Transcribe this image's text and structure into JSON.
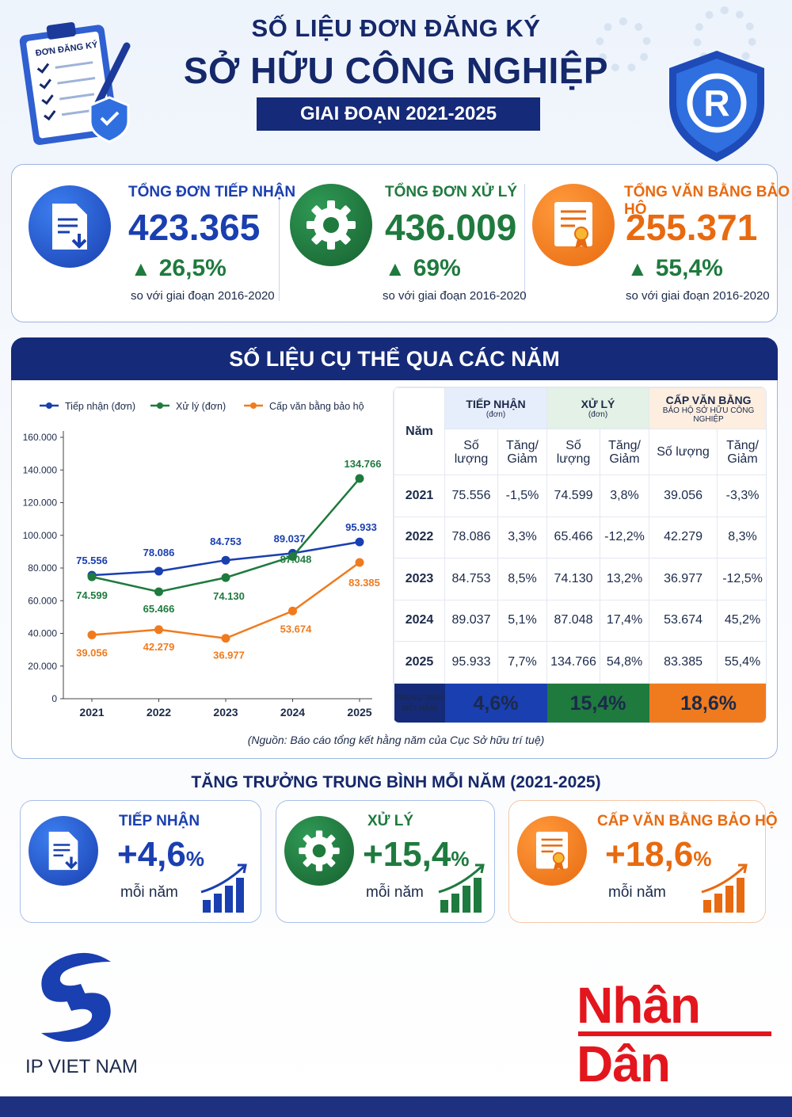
{
  "header": {
    "line1": "SỐ LIỆU ĐƠN ĐĂNG KÝ",
    "line2": "SỞ HỮU CÔNG NGHIỆP",
    "period": "GIAI ĐOẠN 2021-2025",
    "clipboard_label": "ĐƠN ĐĂNG KÝ",
    "shield_letter": "R"
  },
  "summary": [
    {
      "title": "TỔNG ĐƠN TIẾP NHẬN",
      "value": "423.365",
      "pct": "26,5%",
      "note": "so với giai đoạn 2016-2020",
      "color": "#1a3fb0",
      "icon": "document-download-icon"
    },
    {
      "title": "TỔNG ĐƠN XỬ LÝ",
      "value": "436.009",
      "pct": "69%",
      "note": "so với giai đoạn 2016-2020",
      "color": "#1f7a3e",
      "icon": "gear-icon"
    },
    {
      "title": "TỔNG VĂN BẰNG BẢO HỘ",
      "value": "255.371",
      "pct": "55,4%",
      "note": "so với giai đoạn 2016-2020",
      "color": "#e86a10",
      "icon": "certificate-icon"
    }
  ],
  "section_title": "SỐ LIỆU CỤ THỂ QUA CÁC NĂM",
  "chart_data": {
    "type": "line",
    "x": [
      "2021",
      "2022",
      "2023",
      "2024",
      "2025"
    ],
    "ylim": [
      0,
      160000
    ],
    "yticks": [
      0,
      20000,
      40000,
      60000,
      80000,
      100000,
      120000,
      140000,
      160000
    ],
    "ytick_labels": [
      "0",
      "20.000",
      "40.000",
      "60.000",
      "80.000",
      "100.000",
      "120.000",
      "140.000",
      "160.000"
    ],
    "legend_position": "top",
    "grid": false,
    "series": [
      {
        "name": "Tiếp nhận (đơn)",
        "color": "#1a3fb0",
        "values": [
          75556,
          78086,
          84753,
          89037,
          95933
        ],
        "labels": [
          "75.556",
          "78.086",
          "84.753",
          "89.037",
          "95.933"
        ]
      },
      {
        "name": "Xử lý (đơn)",
        "color": "#1f7a3e",
        "values": [
          74599,
          65466,
          74130,
          87048,
          134766
        ],
        "labels": [
          "74.599",
          "65.466",
          "74.130",
          "87.048",
          "134.766"
        ]
      },
      {
        "name": "Cấp văn bằng bảo hộ",
        "color": "#f07b1e",
        "values": [
          39056,
          42279,
          36977,
          53674,
          83385
        ],
        "labels": [
          "39.056",
          "42.279",
          "36.977",
          "53.674",
          "83.385"
        ]
      }
    ]
  },
  "table": {
    "year_header": "Năm",
    "groups": [
      {
        "title": "TIẾP NHẬN",
        "sub": "(đơn)"
      },
      {
        "title": "XỬ LÝ",
        "sub": "(đơn)"
      },
      {
        "title": "CẤP VĂN BẰNG",
        "sub": "BẢO HỘ SỞ HỮU CÔNG NGHIỆP"
      }
    ],
    "col_qty": "Số lượng",
    "col_change": "Tăng/ Giảm",
    "rows": [
      {
        "year": "2021",
        "cells": [
          "75.556",
          "-1,5%",
          "74.599",
          "3,8%",
          "39.056",
          "-3,3%"
        ]
      },
      {
        "year": "2022",
        "cells": [
          "78.086",
          "3,3%",
          "65.466",
          "-12,2%",
          "42.279",
          "8,3%"
        ]
      },
      {
        "year": "2023",
        "cells": [
          "84.753",
          "8,5%",
          "74.130",
          "13,2%",
          "36.977",
          "-12,5%"
        ]
      },
      {
        "year": "2024",
        "cells": [
          "89.037",
          "5,1%",
          "87.048",
          "17,4%",
          "53.674",
          "45,2%"
        ]
      },
      {
        "year": "2025",
        "cells": [
          "95.933",
          "7,7%",
          "134.766",
          "54,8%",
          "83.385",
          "55,4%"
        ]
      }
    ],
    "avg_label_1": "TRUNG BÌNH",
    "avg_label_2": "MỖI NĂM",
    "avg_values": [
      "4,6%",
      "15,4%",
      "18,6%"
    ]
  },
  "source": "(Nguồn: Báo cáo tổng kết hằng năm của Cục Sở hữu trí tuệ)",
  "growth": {
    "title": "TĂNG TRƯỞNG TRUNG BÌNH MỖI NĂM (2021-2025)",
    "cards": [
      {
        "label": "TIẾP NHẬN",
        "value": "+4,6",
        "unit": "%",
        "note": "mỗi năm",
        "color": "#1a3fb0",
        "icon": "document-download-icon"
      },
      {
        "label": "XỬ LÝ",
        "value": "+15,4",
        "unit": "%",
        "note": "mỗi năm",
        "color": "#1f7a3e",
        "icon": "gear-icon"
      },
      {
        "label": "CẤP VĂN BẰNG BẢO HỘ",
        "value": "+18,6",
        "unit": "%",
        "note": "mỗi năm",
        "color": "#e86a10",
        "icon": "certificate-icon"
      }
    ]
  },
  "footer": {
    "ipvn": "IP VIET NAM",
    "newspaper": "Nhân Dân"
  }
}
